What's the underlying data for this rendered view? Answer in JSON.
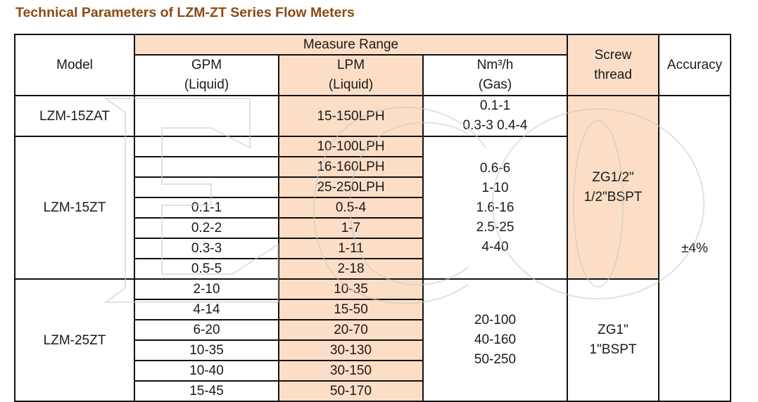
{
  "title": "Technical Parameters of LZM-ZT Series Flow Meters",
  "watermark": {
    "text": "ECO"
  },
  "headers": {
    "model": "Model",
    "measure_range": "Measure Range",
    "gpm": "GPM",
    "gpm_sub": "(Liquid)",
    "lpm": "LPM",
    "lpm_sub": "(Liquid)",
    "nm3h": "Nm³/h",
    "nm3h_sub": "(Gas)",
    "screw_thread_1": "Screw",
    "screw_thread_2": "thread",
    "accuracy": "Accuracy"
  },
  "rows": {
    "zat": {
      "model": "LZM-15ZAT",
      "gpm": "",
      "lpm": "15-150LPH",
      "gas_1": "0.1-1",
      "gas_2": "0.3-3 0.4-4"
    },
    "zt15": {
      "model": "LZM-15ZT",
      "gpm": [
        "",
        "",
        "",
        "0.1-1",
        "0.2-2",
        "0.3-3",
        "0.5-5"
      ],
      "lpm": [
        "10-100LPH",
        "16-160LPH",
        "25-250LPH",
        "0.5-4",
        "1-7",
        "1-11",
        "2-18"
      ],
      "gas": [
        "0.6-6",
        "1-10",
        "1.6-16",
        "2.5-25",
        "4-40"
      ]
    },
    "zt25": {
      "model": "LZM-25ZT",
      "gpm": [
        "2-10",
        "4-14",
        "6-20",
        "10-35",
        "10-40",
        "15-45"
      ],
      "lpm": [
        "10-35",
        "15-50",
        "20-70",
        "30-130",
        "30-150",
        "50-170"
      ],
      "gas": [
        "20-100",
        "40-160",
        "50-250"
      ],
      "thread_1": "ZG1\"",
      "thread_2": "1\"BSPT"
    }
  },
  "thread_small_1": "ZG1/2\"",
  "thread_small_2": "1/2\"BSPT",
  "accuracy": "±4%",
  "colors": {
    "title": "#8b4a12",
    "highlight": "#fbd7b9",
    "border": "#111111"
  }
}
